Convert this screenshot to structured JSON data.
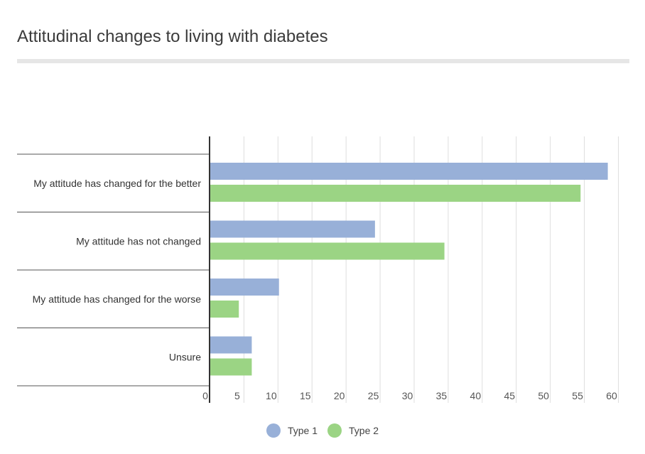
{
  "chart_data": {
    "type": "bar",
    "orientation": "horizontal",
    "title": "Attitudinal changes to living with diabetes",
    "categories": [
      "My attitude has changed for the better",
      "My attitude has not changed",
      "My attitude has changed for the worse",
      "Unsure"
    ],
    "series": [
      {
        "name": "Type 1",
        "color": "#98b0d8",
        "values": [
          58.5,
          24.3,
          10.2,
          6.2
        ]
      },
      {
        "name": "Type 2",
        "color": "#9bd484",
        "values": [
          54.5,
          34.5,
          4.3,
          6.2
        ]
      }
    ],
    "xlim": [
      0,
      60
    ],
    "xticks": [
      "0",
      "5",
      "10",
      "15",
      "20",
      "25",
      "30",
      "35",
      "40",
      "45",
      "50",
      "55",
      "60"
    ],
    "grid": true,
    "legend_position": "bottom"
  }
}
